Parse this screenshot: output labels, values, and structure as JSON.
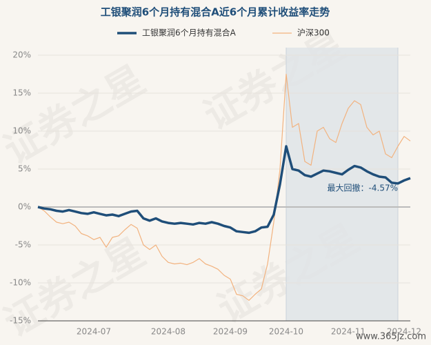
{
  "chart_data": {
    "type": "line",
    "title": "工银聚润6个月持有混合A近6个月累计收益率走势",
    "categories": [
      null,
      null,
      null,
      null,
      null,
      null,
      null,
      null,
      null,
      "2024-07",
      null,
      null,
      null,
      null,
      null,
      null,
      null,
      null,
      null,
      null,
      null,
      "2024-08",
      null,
      null,
      null,
      null,
      null,
      null,
      null,
      null,
      null,
      "2024-09",
      null,
      null,
      null,
      null,
      null,
      null,
      null,
      null,
      "2024-10",
      null,
      null,
      null,
      null,
      null,
      null,
      null,
      null,
      null,
      "2024-11",
      null,
      null,
      null,
      null,
      null,
      null,
      null,
      null,
      "2024-12",
      null
    ],
    "series": [
      {
        "name": "工银聚润6个月持有混合A",
        "color": "#1f4e79",
        "width": 3.5,
        "values": [
          0,
          -0.2,
          -0.3,
          -0.5,
          -0.6,
          -0.4,
          -0.6,
          -0.8,
          -0.9,
          -0.7,
          -0.9,
          -1.1,
          -1.0,
          -1.2,
          -0.9,
          -0.6,
          -0.5,
          -1.5,
          -1.8,
          -1.5,
          -1.9,
          -2.1,
          -2.2,
          -2.1,
          -2.2,
          -2.3,
          -2.1,
          -2.2,
          -2.0,
          -2.2,
          -2.5,
          -2.7,
          -3.2,
          -3.3,
          -3.4,
          -3.2,
          -2.7,
          -2.6,
          -1.0,
          3.0,
          8.0,
          5.0,
          4.8,
          4.2,
          4.0,
          4.4,
          4.8,
          4.7,
          4.5,
          4.3,
          4.9,
          5.4,
          5.2,
          4.7,
          4.3,
          4.0,
          3.9,
          3.2,
          3.1,
          3.5,
          3.8
        ]
      },
      {
        "name": "沪深300",
        "color": "#f2b27e",
        "width": 1.2,
        "values": [
          0,
          -0.5,
          -1.3,
          -2.0,
          -2.2,
          -2.0,
          -2.5,
          -3.5,
          -3.8,
          -4.3,
          -4.0,
          -5.3,
          -4.0,
          -3.8,
          -3.0,
          -2.3,
          -2.8,
          -5.0,
          -5.6,
          -5.0,
          -6.5,
          -7.3,
          -7.5,
          -7.4,
          -7.6,
          -7.3,
          -6.8,
          -7.5,
          -7.8,
          -8.2,
          -9.0,
          -9.5,
          -11.5,
          -11.7,
          -12.3,
          -11.5,
          -10.8,
          -7.5,
          -2.0,
          5.0,
          17.5,
          10.5,
          11.0,
          6.0,
          5.5,
          10.0,
          10.5,
          9.0,
          8.5,
          11.0,
          13.0,
          14.0,
          13.5,
          10.5,
          9.5,
          10.0,
          7.0,
          6.5,
          8.0,
          9.3,
          8.7
        ]
      }
    ],
    "ylim": [
      -15,
      21
    ],
    "yticks": [
      {
        "value": -15,
        "label": "-15%"
      },
      {
        "value": -10,
        "label": "-10%"
      },
      {
        "value": -5,
        "label": "-5%"
      },
      {
        "value": 0,
        "label": "0%"
      },
      {
        "value": 5,
        "label": "5%"
      },
      {
        "value": 10,
        "label": "10%"
      },
      {
        "value": 15,
        "label": "15%"
      },
      {
        "value": 20,
        "label": "20%"
      }
    ],
    "grid": true,
    "annotation": "最大回撤：-4.57%",
    "watermark": "证券之星",
    "source": "www.365jz.com"
  }
}
